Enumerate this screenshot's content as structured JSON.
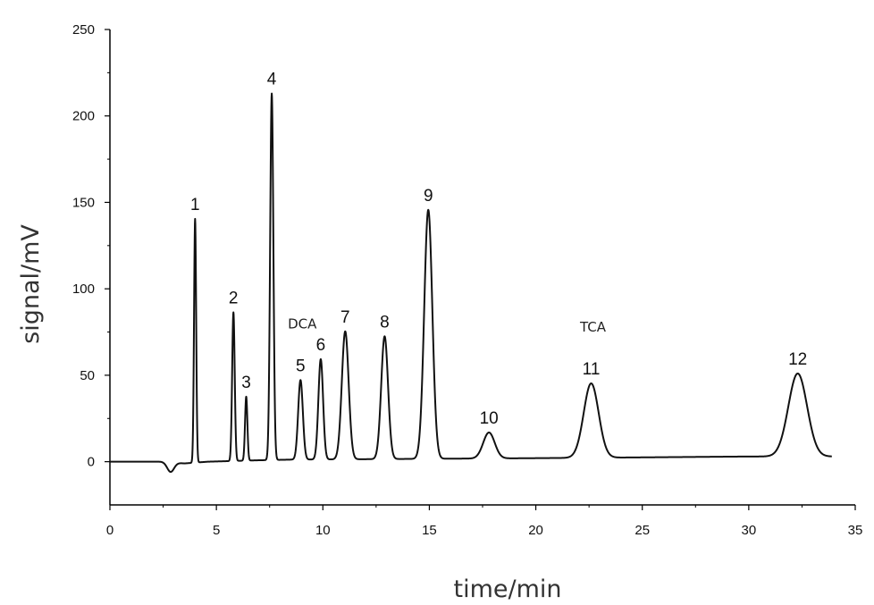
{
  "chart_data": {
    "type": "line",
    "title": "",
    "xlabel": "time/min",
    "ylabel": "signal/mV",
    "xlim": [
      0,
      35
    ],
    "ylim": [
      -25,
      250
    ],
    "grid": false,
    "x_ticks": [
      0,
      5,
      10,
      15,
      20,
      25,
      30,
      35
    ],
    "y_ticks": [
      0,
      50,
      100,
      150,
      200,
      250
    ],
    "baseline": [
      {
        "x": 0,
        "y": 0
      },
      {
        "x": 2.4,
        "y": 0
      },
      {
        "x": 3.5,
        "y": -1
      },
      {
        "x": 4.6,
        "y": 0
      },
      {
        "x": 6.9,
        "y": 0.8
      },
      {
        "x": 8.5,
        "y": 1.2
      },
      {
        "x": 19.5,
        "y": 2
      },
      {
        "x": 25,
        "y": 2.5
      },
      {
        "x": 30,
        "y": 3
      },
      {
        "x": 33.9,
        "y": 3
      }
    ],
    "dip": {
      "x": 2.85,
      "depth": 5.5,
      "width": 0.16
    },
    "peaks": [
      {
        "label": "1",
        "x": 4.0,
        "height": 141,
        "width": 0.05
      },
      {
        "label": "2",
        "x": 5.8,
        "height": 86,
        "width": 0.06
      },
      {
        "label": "3",
        "x": 6.4,
        "height": 37,
        "width": 0.055
      },
      {
        "label": "4",
        "x": 7.6,
        "height": 212,
        "width": 0.075
      },
      {
        "label": "5",
        "x": 8.95,
        "height": 46,
        "width": 0.11
      },
      {
        "label": "6",
        "x": 9.9,
        "height": 58,
        "width": 0.11
      },
      {
        "label": "7",
        "x": 11.05,
        "height": 74,
        "width": 0.16
      },
      {
        "label": "8",
        "x": 12.9,
        "height": 71,
        "width": 0.16
      },
      {
        "label": "9",
        "x": 14.95,
        "height": 144,
        "width": 0.19
      },
      {
        "label": "10",
        "x": 17.8,
        "height": 15,
        "width": 0.27
      },
      {
        "label": "11",
        "x": 22.6,
        "height": 43,
        "width": 0.35
      },
      {
        "label": "12",
        "x": 32.3,
        "height": 48,
        "width": 0.44
      }
    ],
    "annotations": [
      {
        "text": "DCA",
        "near_peak": "5"
      },
      {
        "text": "TCA",
        "near_peak": "11"
      }
    ],
    "line_color": "#111111"
  }
}
